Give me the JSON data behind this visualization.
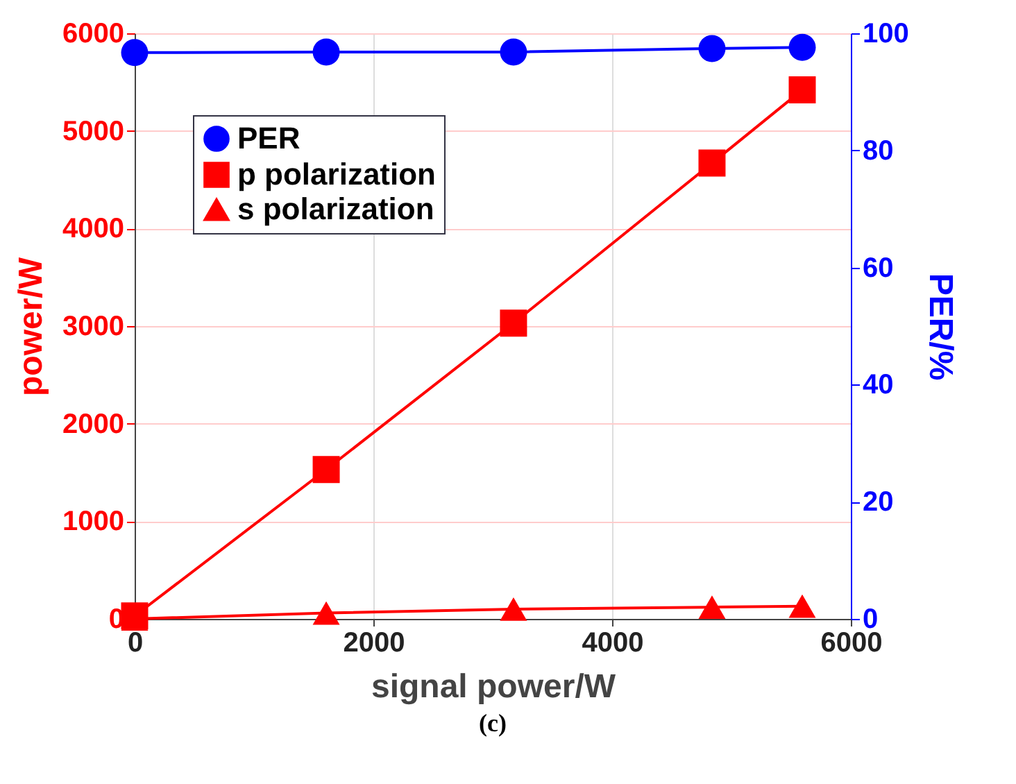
{
  "chart_data": {
    "type": "line",
    "xlabel": "signal power/W",
    "ylabel": "power/W",
    "y2label": "PER/%",
    "x": [
      0,
      1605,
      3174,
      4837,
      5593
    ],
    "series": [
      {
        "name": "PER",
        "color": "#0000ff",
        "marker": "circle",
        "axis": "y2",
        "values": [
          96.7,
          96.8,
          96.8,
          97.4,
          97.6
        ]
      },
      {
        "name": "p polarization",
        "color": "#ff0000",
        "marker": "square",
        "values": [
          30,
          1530,
          3030,
          4670,
          5420
        ]
      },
      {
        "name": "s polarization",
        "color": "#ff0000",
        "marker": "triangle",
        "values": [
          0,
          60,
          100,
          120,
          130
        ]
      }
    ],
    "xlim": [
      0,
      6000
    ],
    "xticks": [
      0,
      2000,
      4000,
      6000
    ],
    "ylim": [
      0,
      6000
    ],
    "yticks": [
      0,
      1000,
      2000,
      3000,
      4000,
      5000,
      6000
    ],
    "y2lim": [
      0,
      100
    ],
    "y2ticks": [
      0,
      20,
      40,
      60,
      80,
      100
    ],
    "grid": true,
    "legend": "top left",
    "annotations": [
      "(c)"
    ]
  }
}
